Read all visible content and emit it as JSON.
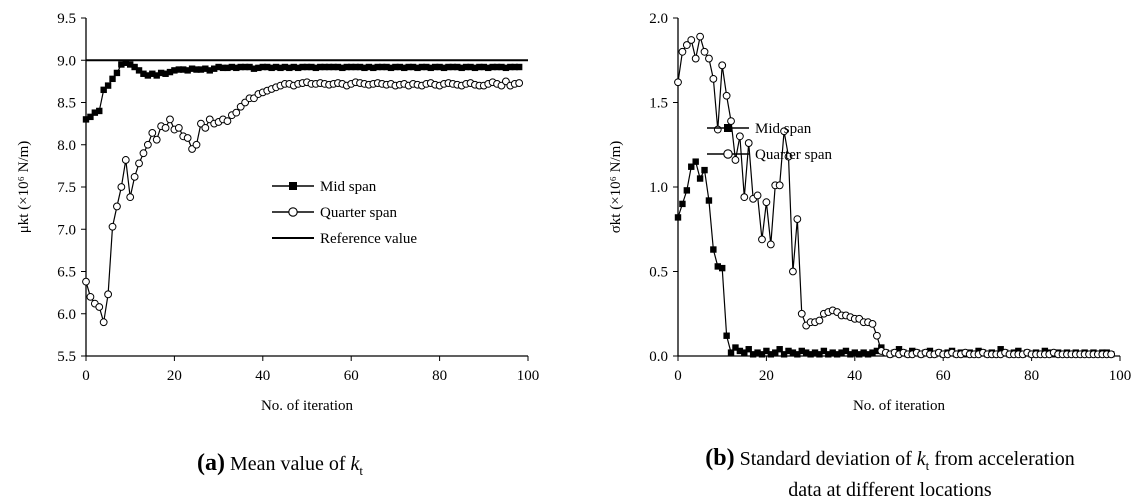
{
  "chart_data": [
    {
      "type": "line",
      "panel": "(a)",
      "xlabel": "No. of iteration",
      "ylabel": "μkt (×10⁶ N/m)",
      "xlim": [
        0,
        100
      ],
      "ylim": [
        5.5,
        9.5
      ],
      "xticks": [
        "0",
        "20",
        "40",
        "60",
        "80",
        "100"
      ],
      "yticks": [
        "5.5",
        "6.0",
        "6.5",
        "7.0",
        "7.5",
        "8.0",
        "8.5",
        "9.0",
        "9.5"
      ],
      "legend_position": "center-right",
      "series": [
        {
          "name": "Mid span",
          "marker": "filled-square",
          "values": [
            8.3,
            8.33,
            8.38,
            8.4,
            8.65,
            8.7,
            8.78,
            8.85,
            8.95,
            8.97,
            8.95,
            8.92,
            8.88,
            8.84,
            8.82,
            8.84,
            8.82,
            8.85,
            8.84,
            8.86,
            8.88,
            8.89,
            8.89,
            8.88,
            8.9,
            8.89,
            8.89,
            8.9,
            8.88,
            8.9,
            8.92,
            8.91,
            8.91,
            8.92,
            8.91,
            8.92,
            8.92,
            8.92,
            8.9,
            8.91,
            8.92,
            8.92,
            8.91,
            8.92,
            8.91,
            8.92,
            8.91,
            8.92,
            8.91,
            8.92,
            8.92,
            8.92,
            8.91,
            8.92,
            8.92,
            8.92,
            8.92,
            8.92,
            8.91,
            8.92,
            8.92,
            8.92,
            8.92,
            8.91,
            8.92,
            8.91,
            8.92,
            8.92,
            8.92,
            8.91,
            8.92,
            8.92,
            8.91,
            8.92,
            8.92,
            8.91,
            8.92,
            8.92,
            8.91,
            8.92,
            8.92,
            8.91,
            8.92,
            8.92,
            8.92,
            8.91,
            8.92,
            8.92,
            8.91,
            8.92,
            8.92,
            8.91,
            8.92,
            8.92,
            8.92,
            8.91,
            8.92,
            8.92,
            8.92
          ]
        },
        {
          "name": "Quarter span",
          "marker": "open-circle",
          "values": [
            6.38,
            6.2,
            6.12,
            6.08,
            5.9,
            6.23,
            7.03,
            7.27,
            7.5,
            7.82,
            7.38,
            7.62,
            7.78,
            7.9,
            8.0,
            8.14,
            8.06,
            8.22,
            8.2,
            8.3,
            8.18,
            8.2,
            8.1,
            8.08,
            7.95,
            8.0,
            8.25,
            8.2,
            8.3,
            8.25,
            8.27,
            8.3,
            8.28,
            8.35,
            8.38,
            8.45,
            8.5,
            8.55,
            8.55,
            8.6,
            8.62,
            8.64,
            8.66,
            8.68,
            8.7,
            8.72,
            8.72,
            8.7,
            8.72,
            8.73,
            8.74,
            8.72,
            8.72,
            8.73,
            8.72,
            8.71,
            8.72,
            8.73,
            8.72,
            8.7,
            8.72,
            8.74,
            8.73,
            8.72,
            8.71,
            8.72,
            8.73,
            8.72,
            8.71,
            8.72,
            8.7,
            8.71,
            8.72,
            8.7,
            8.72,
            8.71,
            8.7,
            8.72,
            8.73,
            8.71,
            8.7,
            8.72,
            8.73,
            8.72,
            8.71,
            8.7,
            8.72,
            8.73,
            8.71,
            8.7,
            8.7,
            8.72,
            8.74,
            8.72,
            8.7,
            8.75,
            8.7,
            8.72,
            8.73
          ]
        },
        {
          "name": "Reference value",
          "marker": "none",
          "constant": 9.0
        }
      ]
    },
    {
      "type": "line",
      "panel": "(b)",
      "xlabel": "No. of iteration",
      "ylabel": "σkt (×10⁶ N/m)",
      "xlim": [
        0,
        100
      ],
      "ylim": [
        0.0,
        2.0
      ],
      "xticks": [
        "0",
        "20",
        "40",
        "60",
        "80",
        "100"
      ],
      "yticks": [
        "0.0",
        "0.5",
        "1.0",
        "1.5",
        "2.0"
      ],
      "legend_position": "upper-right",
      "series": [
        {
          "name": "Mid span",
          "marker": "filled-square",
          "values": [
            0.82,
            0.9,
            0.98,
            1.12,
            1.15,
            1.05,
            1.1,
            0.92,
            0.63,
            0.53,
            0.52,
            0.12,
            0.02,
            0.05,
            0.03,
            0.02,
            0.04,
            0.01,
            0.02,
            0.01,
            0.03,
            0.01,
            0.02,
            0.04,
            0.01,
            0.03,
            0.02,
            0.01,
            0.03,
            0.02,
            0.01,
            0.02,
            0.01,
            0.03,
            0.01,
            0.02,
            0.01,
            0.02,
            0.03,
            0.01,
            0.02,
            0.01,
            0.02,
            0.01,
            0.02,
            0.03,
            0.05,
            0.02,
            0.01,
            0.02,
            0.04,
            0.02,
            0.01,
            0.03,
            0.02,
            0.01,
            0.02,
            0.03,
            0.01,
            0.02,
            0.01,
            0.02,
            0.03,
            0.01,
            0.02,
            0.01,
            0.02,
            0.01,
            0.03,
            0.02,
            0.01,
            0.02,
            0.01,
            0.04,
            0.02,
            0.01,
            0.02,
            0.03,
            0.01,
            0.02,
            0.01,
            0.02,
            0.01,
            0.03,
            0.02,
            0.01,
            0.02,
            0.01,
            0.02,
            0.01,
            0.02,
            0.01,
            0.02,
            0.01,
            0.02,
            0.01,
            0.02,
            0.02,
            0.01
          ]
        },
        {
          "name": "Quarter span",
          "marker": "open-circle",
          "values": [
            1.62,
            1.8,
            1.84,
            1.87,
            1.76,
            1.89,
            1.8,
            1.76,
            1.64,
            1.34,
            1.72,
            1.54,
            1.39,
            1.16,
            1.3,
            0.94,
            1.26,
            0.93,
            0.95,
            0.69,
            0.91,
            0.66,
            1.01,
            1.01,
            1.33,
            1.18,
            0.5,
            0.81,
            0.25,
            0.18,
            0.2,
            0.2,
            0.21,
            0.25,
            0.26,
            0.27,
            0.26,
            0.24,
            0.24,
            0.23,
            0.22,
            0.22,
            0.2,
            0.2,
            0.19,
            0.12,
            0.03,
            0.02,
            0.01,
            0.02,
            0.01,
            0.02,
            0.01,
            0.01,
            0.02,
            0.01,
            0.02,
            0.01,
            0.01,
            0.02,
            0.01,
            0.01,
            0.02,
            0.01,
            0.01,
            0.02,
            0.01,
            0.01,
            0.01,
            0.02,
            0.01,
            0.01,
            0.01,
            0.01,
            0.02,
            0.01,
            0.01,
            0.01,
            0.01,
            0.02,
            0.01,
            0.01,
            0.01,
            0.01,
            0.01,
            0.02,
            0.01,
            0.01,
            0.01,
            0.01,
            0.01,
            0.01,
            0.01,
            0.01,
            0.01,
            0.01,
            0.01,
            0.01,
            0.01
          ]
        }
      ]
    }
  ],
  "captions": {
    "a": {
      "label": "(a)",
      "text": "Mean value of ",
      "var": "k",
      "sub": "t"
    },
    "b": {
      "label": "(b)",
      "text": "Standard deviation of ",
      "var": "k",
      "sub": "t",
      "text2": " from acceleration",
      "line2": "data at different locations"
    }
  }
}
